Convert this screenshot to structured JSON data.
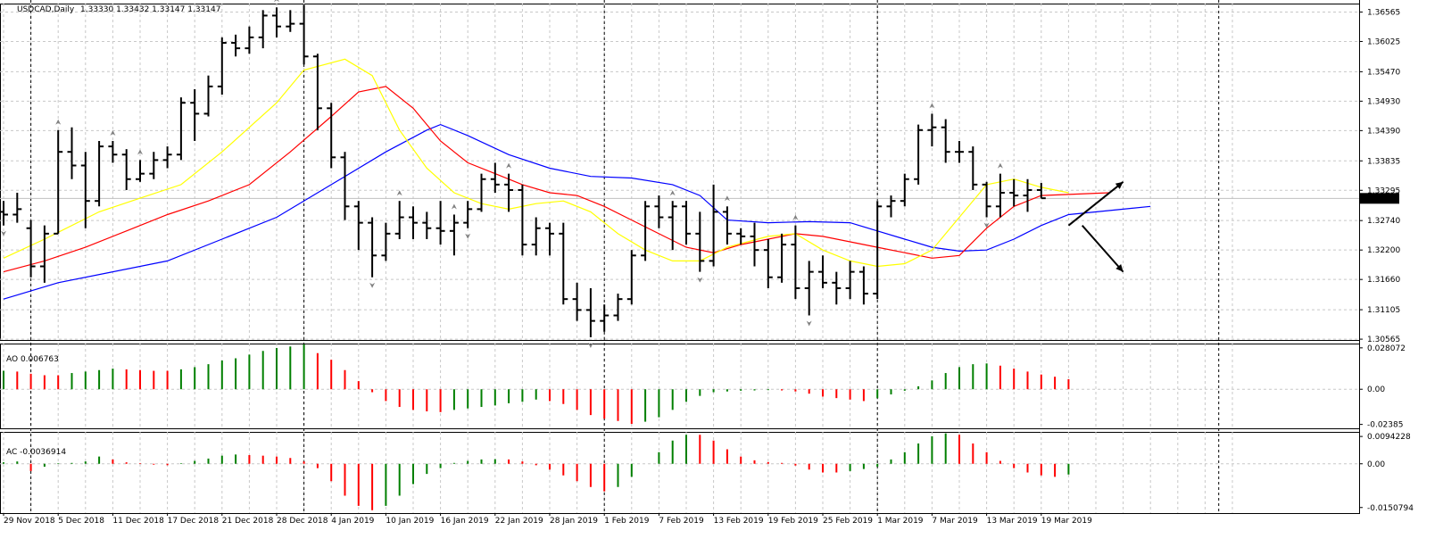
{
  "colors": {
    "bar": "#000000",
    "ma_fast": "#ffff00",
    "ma_mid": "#ff0000",
    "ma_slow": "#0000ff",
    "up": "#007f00",
    "down": "#ff0000",
    "fractal": "#808080",
    "grid": "#c8c8c8"
  },
  "chart_data": [
    {
      "type": "ohlc",
      "title": "USDCAD,Daily",
      "ohlc_text": "1.33330 1.33432 1.33147 1.33147",
      "current_price": "1.33147",
      "y_ticks": [
        "1.36565",
        "1.36025",
        "1.35470",
        "1.34930",
        "1.34390",
        "1.33835",
        "1.33295",
        "1.32740",
        "1.32200",
        "1.31660",
        "1.31105",
        "1.30565"
      ],
      "ylim": [
        1.3055,
        1.3672
      ],
      "x_labels": [
        {
          "i": 0,
          "text": "29 Nov 2018"
        },
        {
          "i": 4,
          "text": "5 Dec 2018"
        },
        {
          "i": 8,
          "text": "11 Dec 2018"
        },
        {
          "i": 12,
          "text": "17 Dec 2018"
        },
        {
          "i": 16,
          "text": "21 Dec 2018"
        },
        {
          "i": 20,
          "text": "28 Dec 2018"
        },
        {
          "i": 24,
          "text": "4 Jan 2019"
        },
        {
          "i": 28,
          "text": "10 Jan 2019"
        },
        {
          "i": 32,
          "text": "16 Jan 2019"
        },
        {
          "i": 36,
          "text": "22 Jan 2019"
        },
        {
          "i": 40,
          "text": "28 Jan 2019"
        },
        {
          "i": 44,
          "text": "1 Feb 2019"
        },
        {
          "i": 48,
          "text": "7 Feb 2019"
        },
        {
          "i": 52,
          "text": "13 Feb 2019"
        },
        {
          "i": 56,
          "text": "19 Feb 2019"
        },
        {
          "i": 60,
          "text": "25 Feb 2019"
        },
        {
          "i": 64,
          "text": "1 Mar 2019"
        },
        {
          "i": 68,
          "text": "7 Mar 2019"
        },
        {
          "i": 72,
          "text": "13 Mar 2019"
        },
        {
          "i": 76,
          "text": "19 Mar 2019"
        }
      ],
      "separators": [
        2,
        22,
        44,
        64,
        89
      ],
      "bars": [
        [
          1.329,
          1.331,
          1.3265,
          1.3285
        ],
        [
          1.3285,
          1.3325,
          1.327,
          1.3295
        ],
        [
          1.326,
          1.3275,
          1.317,
          1.319
        ],
        [
          1.319,
          1.3265,
          1.316,
          1.325
        ],
        [
          1.325,
          1.344,
          1.325,
          1.34
        ],
        [
          1.34,
          1.3445,
          1.335,
          1.3375
        ],
        [
          1.3375,
          1.34,
          1.326,
          1.331
        ],
        [
          1.331,
          1.342,
          1.33,
          1.341
        ],
        [
          1.341,
          1.342,
          1.338,
          1.3395
        ],
        [
          1.3395,
          1.3405,
          1.333,
          1.335
        ],
        [
          1.335,
          1.3385,
          1.3345,
          1.336
        ],
        [
          1.336,
          1.34,
          1.335,
          1.3385
        ],
        [
          1.3385,
          1.341,
          1.337,
          1.3395
        ],
        [
          1.3395,
          1.35,
          1.3385,
          1.349
        ],
        [
          1.349,
          1.3515,
          1.342,
          1.347
        ],
        [
          1.347,
          1.354,
          1.3465,
          1.352
        ],
        [
          1.352,
          1.361,
          1.3505,
          1.36
        ],
        [
          1.36,
          1.3615,
          1.3575,
          1.359
        ],
        [
          1.359,
          1.363,
          1.358,
          1.361
        ],
        [
          1.361,
          1.366,
          1.359,
          1.365
        ],
        [
          1.365,
          1.3665,
          1.361,
          1.363
        ],
        [
          1.363,
          1.366,
          1.362,
          1.3635
        ],
        [
          1.3635,
          1.367,
          1.356,
          1.3575
        ],
        [
          1.3575,
          1.358,
          1.344,
          1.348
        ],
        [
          1.348,
          1.349,
          1.337,
          1.339
        ],
        [
          1.339,
          1.34,
          1.3275,
          1.33
        ],
        [
          1.33,
          1.331,
          1.322,
          1.327
        ],
        [
          1.327,
          1.328,
          1.317,
          1.321
        ],
        [
          1.321,
          1.327,
          1.32,
          1.325
        ],
        [
          1.325,
          1.331,
          1.324,
          1.328
        ],
        [
          1.328,
          1.33,
          1.324,
          1.327
        ],
        [
          1.327,
          1.329,
          1.324,
          1.326
        ],
        [
          1.326,
          1.331,
          1.323,
          1.3255
        ],
        [
          1.3255,
          1.3285,
          1.321,
          1.327
        ],
        [
          1.327,
          1.331,
          1.326,
          1.3295
        ],
        [
          1.3295,
          1.336,
          1.329,
          1.335
        ],
        [
          1.335,
          1.338,
          1.3325,
          1.334
        ],
        [
          1.334,
          1.336,
          1.329,
          1.333
        ],
        [
          1.333,
          1.334,
          1.321,
          1.323
        ],
        [
          1.323,
          1.328,
          1.321,
          1.326
        ],
        [
          1.326,
          1.327,
          1.321,
          1.325
        ],
        [
          1.325,
          1.327,
          1.312,
          1.313
        ],
        [
          1.313,
          1.316,
          1.309,
          1.311
        ],
        [
          1.311,
          1.315,
          1.306,
          1.309
        ],
        [
          1.309,
          1.312,
          1.307,
          1.31
        ],
        [
          1.31,
          1.314,
          1.309,
          1.313
        ],
        [
          1.313,
          1.322,
          1.312,
          1.321
        ],
        [
          1.321,
          1.331,
          1.32,
          1.33
        ],
        [
          1.33,
          1.332,
          1.326,
          1.328
        ],
        [
          1.328,
          1.331,
          1.322,
          1.33
        ],
        [
          1.33,
          1.331,
          1.323,
          1.325
        ],
        [
          1.325,
          1.329,
          1.318,
          1.32
        ],
        [
          1.32,
          1.334,
          1.319,
          1.329
        ],
        [
          1.329,
          1.33,
          1.323,
          1.325
        ],
        [
          1.325,
          1.326,
          1.323,
          1.3245
        ],
        [
          1.3245,
          1.327,
          1.319,
          1.322
        ],
        [
          1.322,
          1.324,
          1.315,
          1.317
        ],
        [
          1.317,
          1.325,
          1.316,
          1.323
        ],
        [
          1.323,
          1.3265,
          1.313,
          1.315
        ],
        [
          1.315,
          1.32,
          1.31,
          1.318
        ],
        [
          1.318,
          1.321,
          1.315,
          1.316
        ],
        [
          1.316,
          1.318,
          1.312,
          1.315
        ],
        [
          1.315,
          1.32,
          1.313,
          1.318
        ],
        [
          1.318,
          1.319,
          1.312,
          1.314
        ],
        [
          1.314,
          1.331,
          1.313,
          1.33
        ],
        [
          1.33,
          1.332,
          1.328,
          1.331
        ],
        [
          1.331,
          1.336,
          1.33,
          1.335
        ],
        [
          1.335,
          1.345,
          1.334,
          1.344
        ],
        [
          1.344,
          1.347,
          1.341,
          1.3445
        ],
        [
          1.3445,
          1.346,
          1.338,
          1.34
        ],
        [
          1.34,
          1.342,
          1.338,
          1.34
        ],
        [
          1.34,
          1.341,
          1.333,
          1.334
        ],
        [
          1.334,
          1.3345,
          1.328,
          1.33
        ],
        [
          1.33,
          1.336,
          1.328,
          1.3325
        ],
        [
          1.3325,
          1.335,
          1.33,
          1.332
        ],
        [
          1.332,
          1.335,
          1.329,
          1.333
        ],
        [
          1.333,
          1.3343,
          1.3315,
          1.3315
        ]
      ],
      "fractals": [
        {
          "i": 0,
          "up": false
        },
        {
          "i": 4,
          "up": true
        },
        {
          "i": 8,
          "up": true
        },
        {
          "i": 10,
          "up": true
        },
        {
          "i": 20,
          "up": true
        },
        {
          "i": 27,
          "up": false
        },
        {
          "i": 29,
          "up": true
        },
        {
          "i": 33,
          "up": true
        },
        {
          "i": 34,
          "up": false
        },
        {
          "i": 37,
          "up": true
        },
        {
          "i": 43,
          "up": false
        },
        {
          "i": 49,
          "up": true
        },
        {
          "i": 51,
          "up": false
        },
        {
          "i": 53,
          "up": true
        },
        {
          "i": 58,
          "up": true
        },
        {
          "i": 59,
          "up": false
        },
        {
          "i": 68,
          "up": true
        },
        {
          "i": 73,
          "up": true
        },
        {
          "i": 72,
          "up": false
        }
      ],
      "ma_fast": [
        [
          0,
          1.3205
        ],
        [
          3,
          1.324
        ],
        [
          7,
          1.329
        ],
        [
          10,
          1.3315
        ],
        [
          13,
          1.334
        ],
        [
          16,
          1.34
        ],
        [
          20,
          1.349
        ],
        [
          22,
          1.355
        ],
        [
          25,
          1.357
        ],
        [
          27,
          1.354
        ],
        [
          29,
          1.344
        ],
        [
          31,
          1.337
        ],
        [
          33,
          1.3325
        ],
        [
          35,
          1.3305
        ],
        [
          37,
          1.3295
        ],
        [
          39,
          1.3305
        ],
        [
          41,
          1.331
        ],
        [
          43,
          1.329
        ],
        [
          45,
          1.325
        ],
        [
          47,
          1.322
        ],
        [
          49,
          1.32
        ],
        [
          51,
          1.32
        ],
        [
          53,
          1.3225
        ],
        [
          56,
          1.3245
        ],
        [
          58,
          1.325
        ],
        [
          60,
          1.322
        ],
        [
          62,
          1.32
        ],
        [
          64,
          1.319
        ],
        [
          66,
          1.3195
        ],
        [
          68,
          1.322
        ],
        [
          70,
          1.328
        ],
        [
          72,
          1.334
        ],
        [
          74,
          1.335
        ],
        [
          76,
          1.3335
        ],
        [
          78,
          1.3325
        ]
      ],
      "ma_mid": [
        [
          0,
          1.318
        ],
        [
          3,
          1.32
        ],
        [
          6,
          1.3225
        ],
        [
          9,
          1.3255
        ],
        [
          12,
          1.3285
        ],
        [
          15,
          1.331
        ],
        [
          18,
          1.334
        ],
        [
          21,
          1.34
        ],
        [
          24,
          1.3465
        ],
        [
          26,
          1.351
        ],
        [
          28,
          1.352
        ],
        [
          30,
          1.348
        ],
        [
          32,
          1.342
        ],
        [
          34,
          1.338
        ],
        [
          36,
          1.336
        ],
        [
          38,
          1.334
        ],
        [
          40,
          1.3325
        ],
        [
          42,
          1.332
        ],
        [
          44,
          1.33
        ],
        [
          46,
          1.3275
        ],
        [
          48,
          1.325
        ],
        [
          50,
          1.3225
        ],
        [
          52,
          1.3215
        ],
        [
          54,
          1.323
        ],
        [
          56,
          1.324
        ],
        [
          58,
          1.325
        ],
        [
          60,
          1.3245
        ],
        [
          62,
          1.3235
        ],
        [
          64,
          1.3225
        ],
        [
          66,
          1.3215
        ],
        [
          68,
          1.3205
        ],
        [
          70,
          1.321
        ],
        [
          72,
          1.326
        ],
        [
          74,
          1.33
        ],
        [
          76,
          1.332
        ],
        [
          78,
          1.3322
        ],
        [
          81,
          1.3325
        ]
      ],
      "ma_slow": [
        [
          0,
          1.313
        ],
        [
          4,
          1.316
        ],
        [
          8,
          1.318
        ],
        [
          12,
          1.32
        ],
        [
          16,
          1.324
        ],
        [
          20,
          1.328
        ],
        [
          24,
          1.334
        ],
        [
          28,
          1.34
        ],
        [
          31,
          1.344
        ],
        [
          32,
          1.345
        ],
        [
          34,
          1.343
        ],
        [
          37,
          1.3395
        ],
        [
          40,
          1.337
        ],
        [
          43,
          1.3355
        ],
        [
          46,
          1.3352
        ],
        [
          49,
          1.334
        ],
        [
          51,
          1.332
        ],
        [
          53,
          1.3275
        ],
        [
          56,
          1.327
        ],
        [
          59,
          1.3272
        ],
        [
          62,
          1.327
        ],
        [
          64,
          1.3255
        ],
        [
          66,
          1.324
        ],
        [
          68,
          1.3225
        ],
        [
          70,
          1.3218
        ],
        [
          72,
          1.322
        ],
        [
          74,
          1.324
        ],
        [
          76,
          1.3265
        ],
        [
          78,
          1.3285
        ],
        [
          82,
          1.3295
        ],
        [
          84,
          1.33
        ]
      ],
      "arrows": [
        {
          "from": [
            78,
            1.3265
          ],
          "to": [
            82,
            1.3345
          ]
        },
        {
          "from": [
            79,
            1.3265
          ],
          "to": [
            82,
            1.318
          ]
        }
      ],
      "xlabel": "",
      "ylabel": ""
    },
    {
      "type": "bar",
      "title": "AO 0.006763",
      "y_ticks": [
        "0.028072",
        "0.00",
        "-0.02385"
      ],
      "ylim": [
        -0.0265,
        0.031
      ],
      "values": [
        0.0125,
        0.012,
        0.0105,
        0.0095,
        0.0095,
        0.011,
        0.012,
        0.013,
        0.014,
        0.0135,
        0.013,
        0.0125,
        0.0125,
        0.0135,
        0.015,
        0.017,
        0.0195,
        0.021,
        0.0235,
        0.026,
        0.028,
        0.029,
        0.0305,
        0.0245,
        0.02,
        0.013,
        0.0055,
        -0.002,
        -0.008,
        -0.012,
        -0.014,
        -0.015,
        -0.0155,
        -0.014,
        -0.013,
        -0.012,
        -0.011,
        -0.0095,
        -0.0085,
        -0.007,
        -0.008,
        -0.01,
        -0.014,
        -0.0175,
        -0.02,
        -0.0215,
        -0.0235,
        -0.022,
        -0.019,
        -0.014,
        -0.0085,
        -0.0045,
        -0.002,
        -0.0015,
        -0.001,
        -0.0008,
        -0.0006,
        -0.0008,
        -0.0015,
        -0.003,
        -0.005,
        -0.006,
        -0.007,
        -0.008,
        -0.006,
        -0.0035,
        -0.001,
        0.002,
        0.006,
        0.011,
        0.015,
        0.017,
        0.0175,
        0.016,
        0.014,
        0.012,
        0.01,
        0.0085,
        0.0068
      ]
    },
    {
      "type": "bar",
      "title": "AC -0.0036914",
      "y_ticks": [
        "0.0094228",
        "0.00",
        "-0.0150794"
      ],
      "ylim": [
        -0.017,
        0.011
      ],
      "values": [
        0.0005,
        0.0008,
        -0.0025,
        -0.001,
        0.0002,
        0.0003,
        0.0008,
        0.0025,
        0.0015,
        0.0005,
        0.0002,
        -0.0003,
        -0.0005,
        0.0002,
        0.001,
        0.0018,
        0.0028,
        0.0032,
        0.003,
        0.0028,
        0.0025,
        0.002,
        0.0008,
        -0.0015,
        -0.006,
        -0.011,
        -0.0145,
        -0.016,
        -0.0145,
        -0.011,
        -0.007,
        -0.0035,
        -0.0015,
        0.0003,
        0.001,
        0.0015,
        0.0016,
        0.0015,
        0.0008,
        -0.0005,
        -0.002,
        -0.004,
        -0.006,
        -0.008,
        -0.0095,
        -0.008,
        -0.0045,
        0.0,
        0.004,
        0.008,
        0.01,
        0.01,
        0.008,
        0.005,
        0.0025,
        0.0012,
        0.0006,
        0.0003,
        -0.0006,
        -0.002,
        -0.003,
        -0.003,
        -0.0025,
        -0.0018,
        -0.001,
        0.0015,
        0.004,
        0.007,
        0.0095,
        0.0105,
        0.01,
        0.007,
        0.004,
        0.001,
        -0.0015,
        -0.003,
        -0.004,
        -0.0045,
        -0.0037
      ]
    }
  ]
}
